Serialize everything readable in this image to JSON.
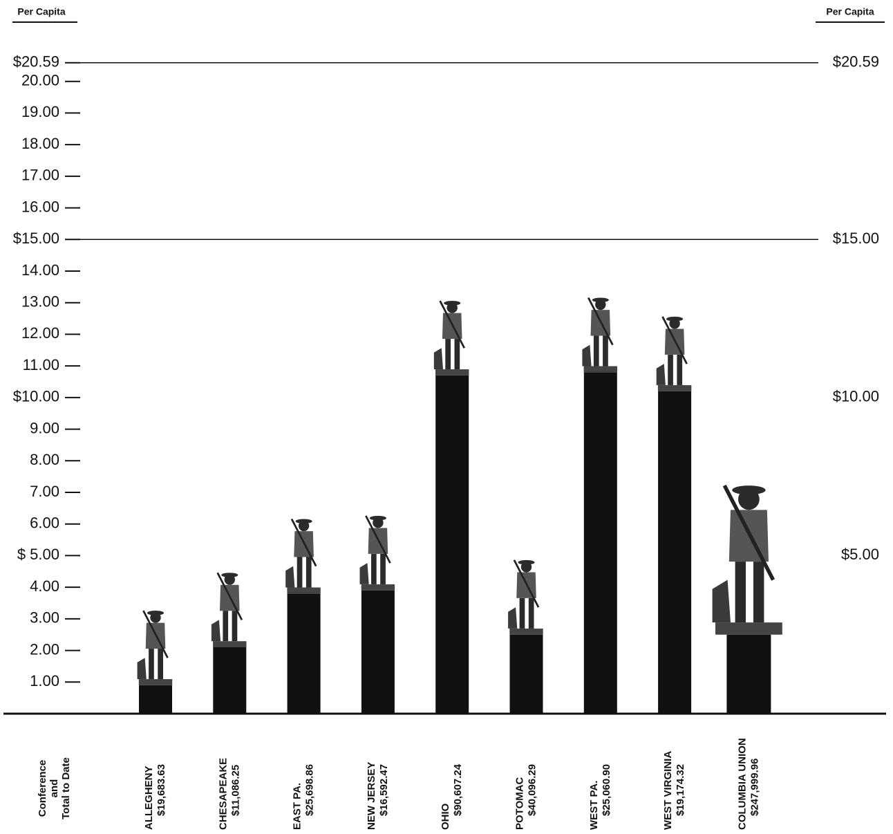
{
  "chart_data": {
    "type": "bar",
    "y_label": "Per Capita",
    "y2_label": "Per Capita",
    "x_label_lines": [
      "Conference",
      "and",
      "Total to Date"
    ],
    "categories": [
      "ALLEGHENY",
      "CHESAPEAKE",
      "EAST PA.",
      "NEW JERSEY",
      "OHIO",
      "POTOMAC",
      "WEST PA.",
      "WEST VIRGINIA",
      "COLUMBIA UNION"
    ],
    "totals": [
      "$19,683.63",
      "$11,086.25",
      "$25,698.86",
      "$16,592.47",
      "$90,607.24",
      "$40,096.29",
      "$25,060.90",
      "$19,174.32",
      "$247,999.96"
    ],
    "values": [
      0.9,
      2.1,
      3.8,
      3.9,
      10.7,
      2.5,
      10.8,
      10.2,
      2.5
    ],
    "color": "#111111",
    "ylim": [
      0,
      21
    ],
    "yticks": [
      {
        "value": 20.59,
        "label": "$20.59"
      },
      {
        "value": 20,
        "label": "20.00"
      },
      {
        "value": 19,
        "label": "19.00"
      },
      {
        "value": 18,
        "label": "18.00"
      },
      {
        "value": 17,
        "label": "17.00"
      },
      {
        "value": 16,
        "label": "16.00"
      },
      {
        "value": 15,
        "label": "$15.00"
      },
      {
        "value": 14,
        "label": "14.00"
      },
      {
        "value": 13,
        "label": "13.00"
      },
      {
        "value": 12,
        "label": "12.00"
      },
      {
        "value": 11,
        "label": "11.00"
      },
      {
        "value": 10,
        "label": "$10.00"
      },
      {
        "value": 9,
        "label": "9.00"
      },
      {
        "value": 8,
        "label": "8.00"
      },
      {
        "value": 7,
        "label": "7.00"
      },
      {
        "value": 6,
        "label": "6.00"
      },
      {
        "value": 5,
        "label": "$ 5.00"
      },
      {
        "value": 4,
        "label": "4.00"
      },
      {
        "value": 3,
        "label": "3.00"
      },
      {
        "value": 2,
        "label": "2.00"
      },
      {
        "value": 1,
        "label": "1.00"
      }
    ],
    "y2lim": [
      0,
      21
    ],
    "y2ticks": [
      {
        "value": 20.59,
        "label": "$20.59"
      },
      {
        "value": 15,
        "label": "$15.00"
      },
      {
        "value": 10,
        "label": "$10.00"
      },
      {
        "value": 5,
        "label": "$5.00"
      }
    ]
  }
}
